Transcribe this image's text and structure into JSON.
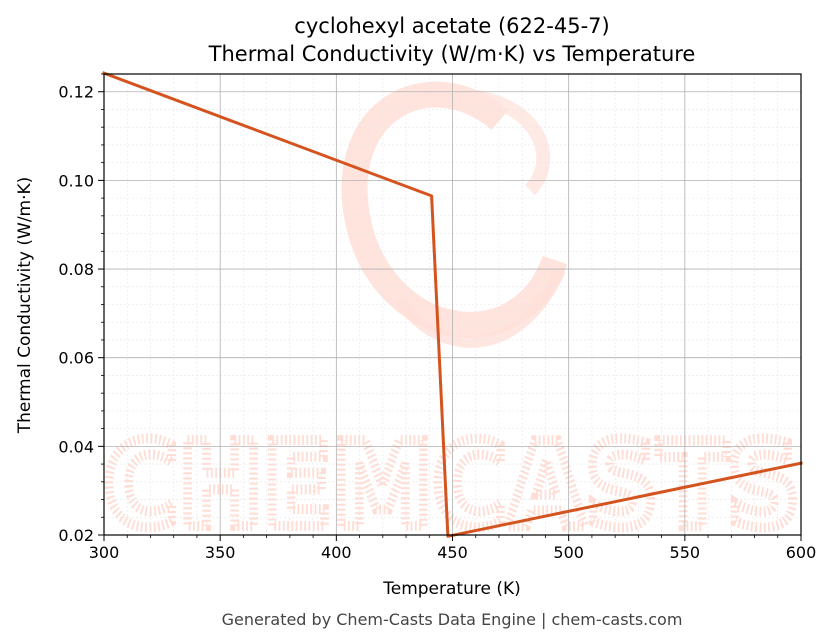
{
  "chart_data": {
    "type": "line",
    "title_line1": "cyclohexyl acetate (622-45-7)",
    "title_line2": "Thermal Conductivity (W/m·K) vs Temperature",
    "xlabel": "Temperature (K)",
    "ylabel": "Thermal Conductivity (W/m·K)",
    "xlim": [
      300,
      600
    ],
    "ylim": [
      0.02,
      0.124
    ],
    "xticks": [
      300,
      350,
      400,
      450,
      500,
      550,
      600
    ],
    "xtick_labels": [
      "300",
      "350",
      "400",
      "450",
      "500",
      "550",
      "600"
    ],
    "yticks": [
      0.02,
      0.04,
      0.06,
      0.08,
      0.1,
      0.12
    ],
    "ytick_labels": [
      "0.02",
      "0.04",
      "0.06",
      "0.08",
      "0.10",
      "0.12"
    ],
    "grid": true,
    "series": [
      {
        "color": "#d4541f",
        "x": [
          300,
          441,
          448,
          600
        ],
        "y": [
          0.1242,
          0.0965,
          0.0197,
          0.0362
        ]
      }
    ]
  },
  "watermark": {
    "text": "CHEMCASTS",
    "color": "#ffd9d0"
  },
  "footer": "Generated by Chem-Casts Data Engine | chem-casts.com"
}
